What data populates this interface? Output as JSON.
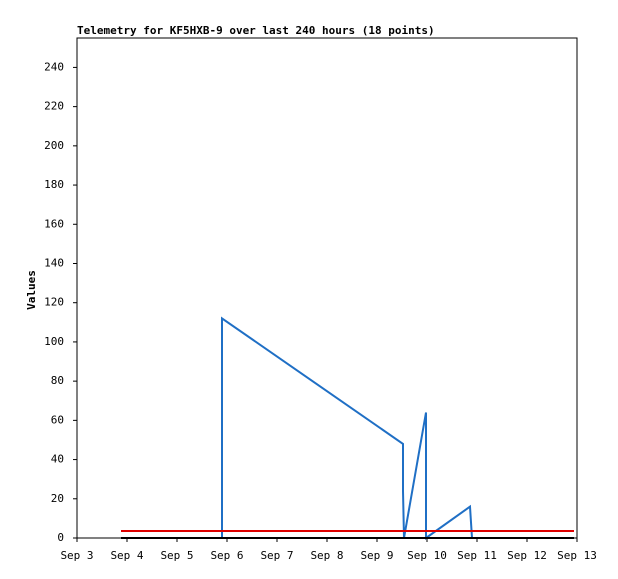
{
  "chart_data": {
    "type": "line",
    "title": "Telemetry for KF5HXB-9 over last 240 hours (18 points)",
    "ylabel": "Values",
    "xlim": [
      3,
      13
    ],
    "xticks": [
      {
        "value": 3,
        "label": "Sep 3"
      },
      {
        "value": 4,
        "label": "Sep 4"
      },
      {
        "value": 5,
        "label": "Sep 5"
      },
      {
        "value": 6,
        "label": "Sep 6"
      },
      {
        "value": 7,
        "label": "Sep 7"
      },
      {
        "value": 8,
        "label": "Sep 8"
      },
      {
        "value": 9,
        "label": "Sep 9"
      },
      {
        "value": 10,
        "label": "Sep 10"
      },
      {
        "value": 11,
        "label": "Sep 11"
      },
      {
        "value": 12,
        "label": "Sep 12"
      },
      {
        "value": 13,
        "label": "Sep 13"
      }
    ],
    "ylim": [
      0,
      255
    ],
    "yticks": [
      0,
      20,
      40,
      60,
      80,
      100,
      120,
      140,
      160,
      180,
      200,
      220,
      240
    ],
    "series": [
      {
        "color": "#1f6fc5",
        "x": [
          5.9,
          5.9,
          9.52,
          9.52,
          9.54,
          9.98,
          9.98,
          10.86,
          10.9
        ],
        "values": [
          0,
          112,
          48,
          24,
          0,
          64,
          0,
          16,
          0
        ]
      },
      {
        "color": "#e00000",
        "x": [
          3.88,
          12.94
        ],
        "values": [
          3.6,
          3.6
        ]
      },
      {
        "color": "#000000",
        "x": [
          3.88,
          12.94
        ],
        "values": [
          0,
          0
        ]
      }
    ]
  }
}
